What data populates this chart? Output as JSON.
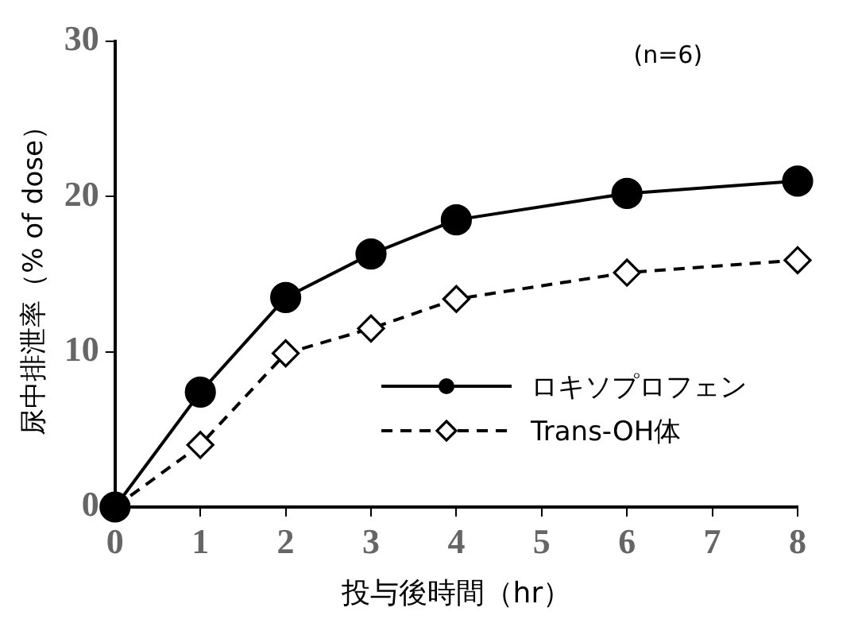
{
  "chart_data": {
    "type": "line",
    "xlabel": "投与後時間（hr）",
    "ylabel": "尿中排泄率（% of dose）",
    "x": [
      0,
      1,
      2,
      3,
      4,
      6,
      8
    ],
    "xlim": [
      0,
      8
    ],
    "xticks": [
      0,
      1,
      2,
      3,
      4,
      5,
      6,
      7,
      8
    ],
    "ylim": [
      0,
      30
    ],
    "yticks": [
      0,
      10,
      20,
      30
    ],
    "grid": false,
    "legend": "bottom right",
    "annotations": [
      "(n=6)"
    ],
    "series": [
      {
        "name": "ロキソプロフェン",
        "color": "#000000",
        "marker": "circle",
        "line_style": "solid",
        "values": [
          0,
          7.4,
          13.5,
          16.3,
          18.5,
          20.2,
          21.0
        ]
      },
      {
        "name": "Trans-OH体",
        "color": "#000000",
        "marker": "diamond",
        "line_style": "dashed",
        "values": [
          0,
          4.0,
          9.9,
          11.5,
          13.4,
          15.1,
          15.9
        ]
      }
    ]
  }
}
